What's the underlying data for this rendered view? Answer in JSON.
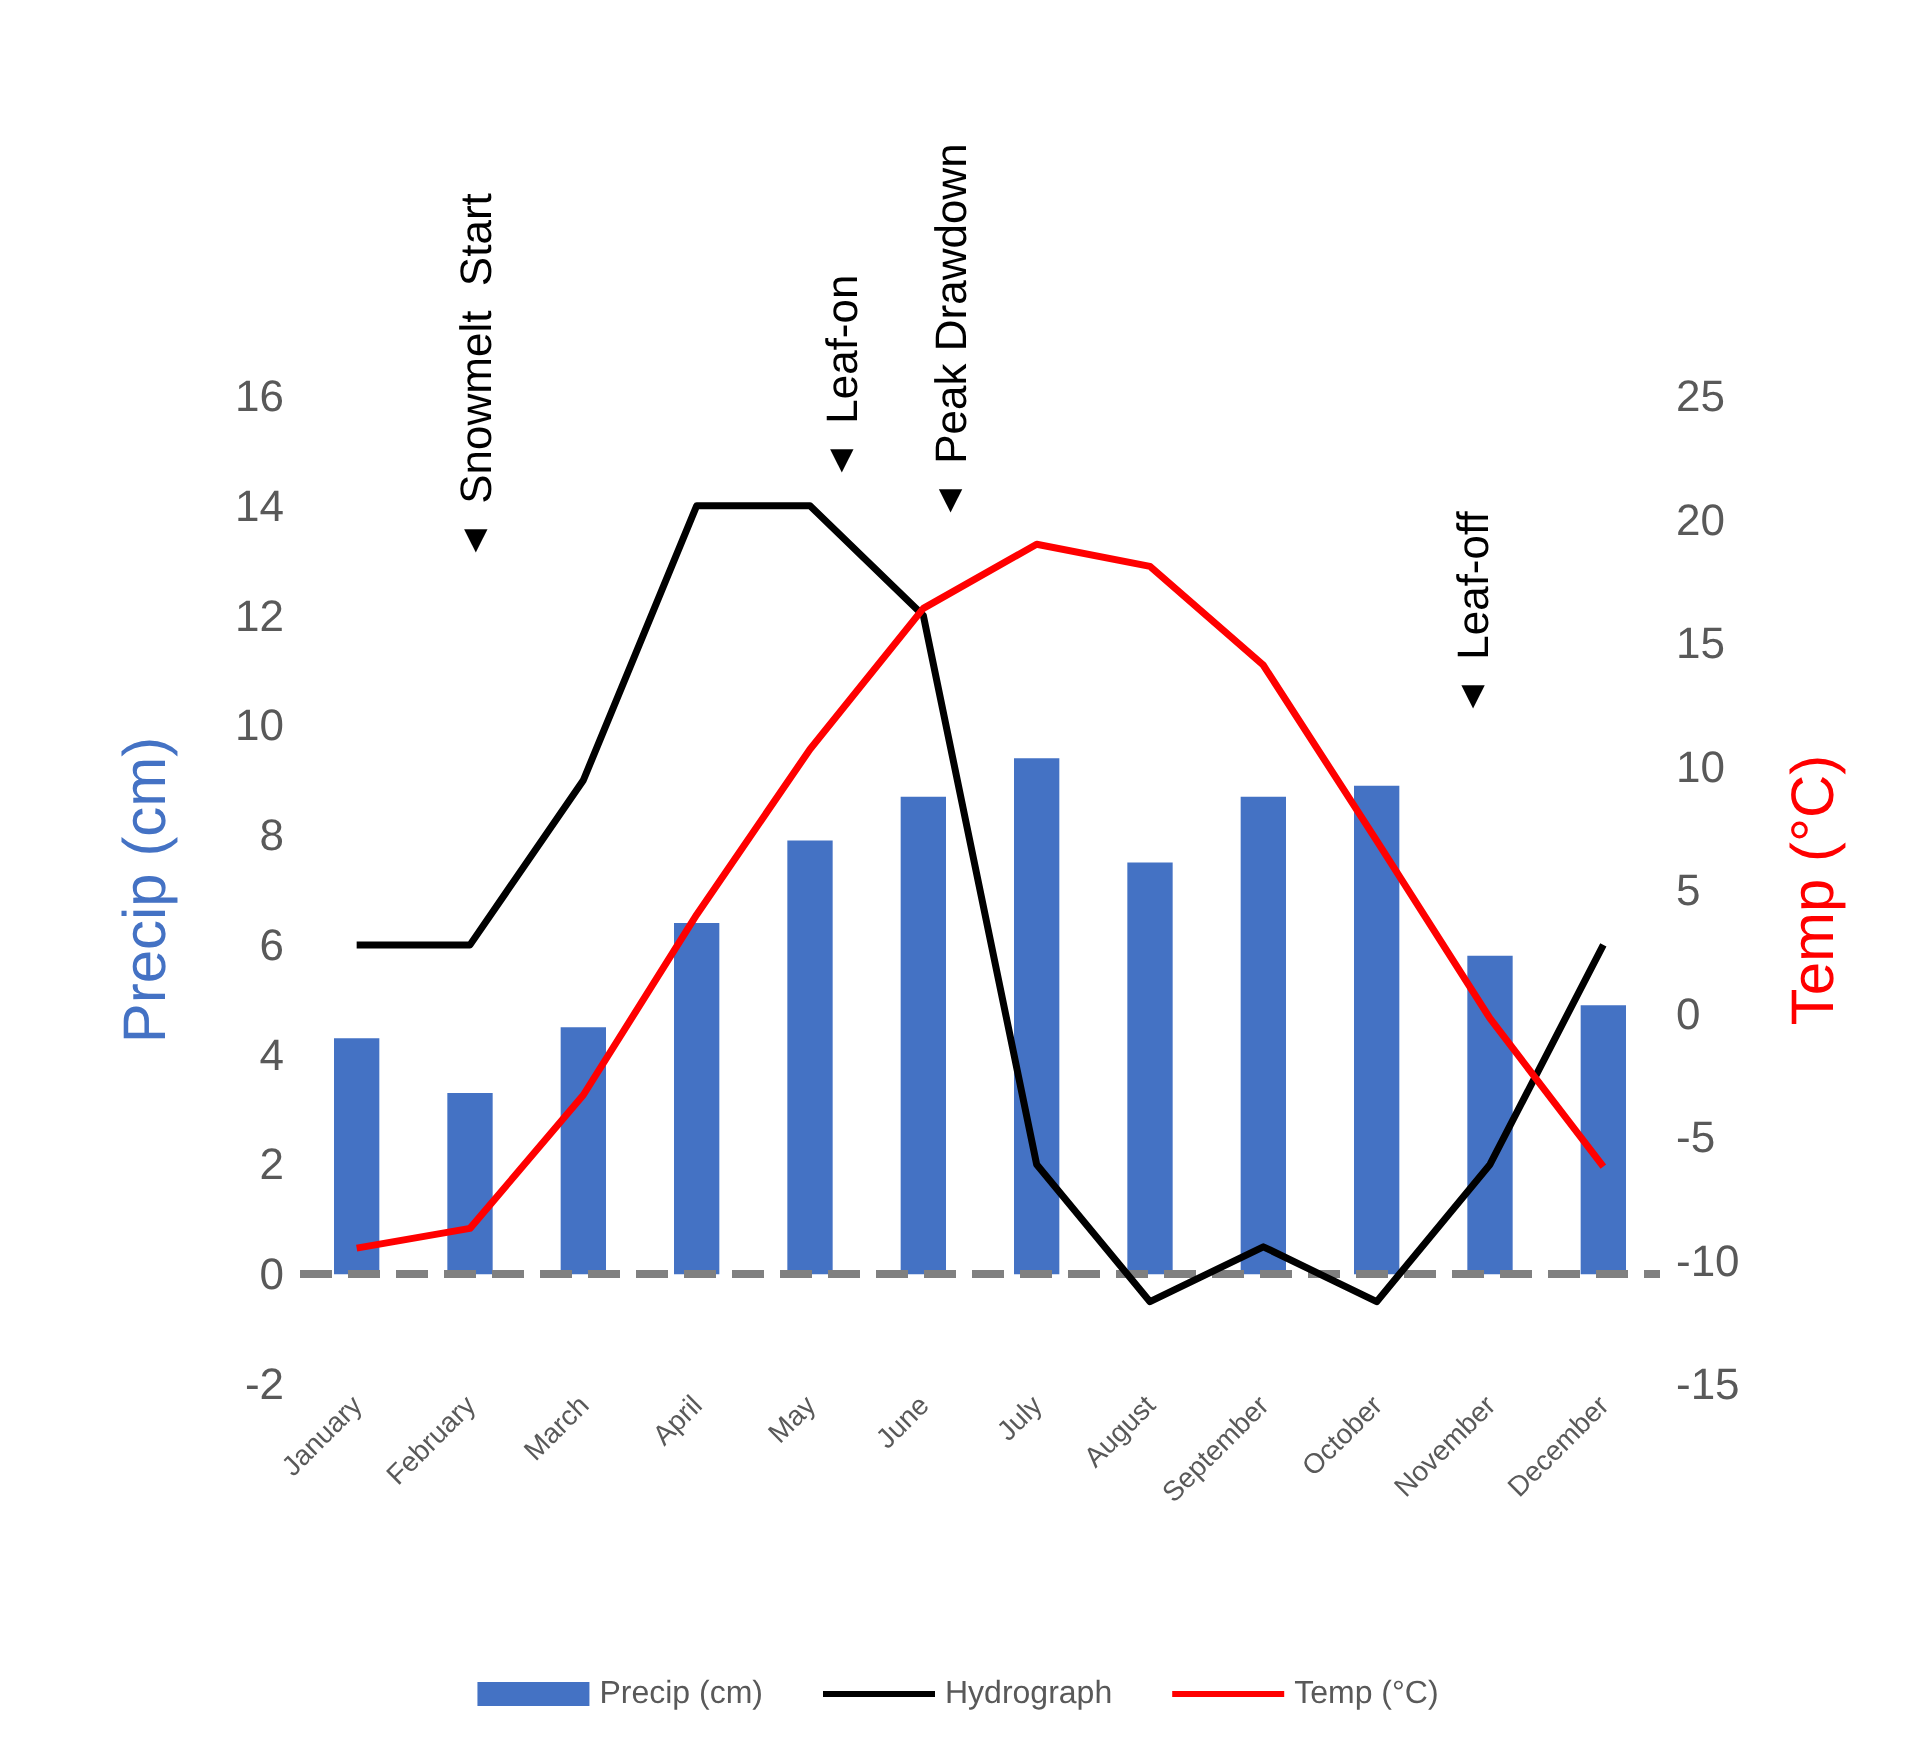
{
  "chart_data": {
    "type": "bar",
    "ylabel": "Precip (cm)",
    "y2label": "Temp (°C)",
    "categories": [
      "January",
      "February",
      "March",
      "April",
      "May",
      "June",
      "July",
      "August",
      "September",
      "October",
      "November",
      "December"
    ],
    "series": [
      {
        "name": "Precip (cm)",
        "color": "#4472c4",
        "values": [
          4.3,
          3.3,
          4.5,
          6.4,
          7.9,
          8.7,
          9.4,
          7.5,
          8.7,
          8.9,
          5.8,
          4.9
        ]
      },
      {
        "name": "Hydrograph",
        "type": "line",
        "color": "#000000",
        "values": [
          6,
          6,
          9,
          14,
          14,
          12,
          2,
          -0.5,
          0.5,
          -0.5,
          2,
          6
        ]
      },
      {
        "name": "Temp (°C)",
        "type": "line",
        "axis": "y2",
        "color": "#ff0000",
        "values": [
          -9.5,
          -8.7,
          -3.3,
          4,
          10.7,
          16.4,
          19,
          18.1,
          14.1,
          7,
          -0.2,
          -6.2
        ]
      }
    ],
    "ylim": [
      -2,
      16
    ],
    "yticks": [
      -2,
      0,
      2,
      4,
      6,
      8,
      10,
      12,
      14,
      16
    ],
    "y2lim": [
      -15,
      25
    ],
    "y2ticks": [
      -15,
      -10,
      -5,
      0,
      5,
      10,
      15,
      20,
      25
    ],
    "ref_lines": [
      {
        "axis": "y",
        "value": 0,
        "color": "#808080",
        "line_style": "dashed"
      }
    ],
    "annotations": [
      "▼ Snowmelt  Start",
      "▼ Leaf-on",
      "▼ Peak Drawdown",
      "▼ Leaf-off"
    ],
    "grid": false,
    "legend": "bottom",
    "marker": "none"
  }
}
